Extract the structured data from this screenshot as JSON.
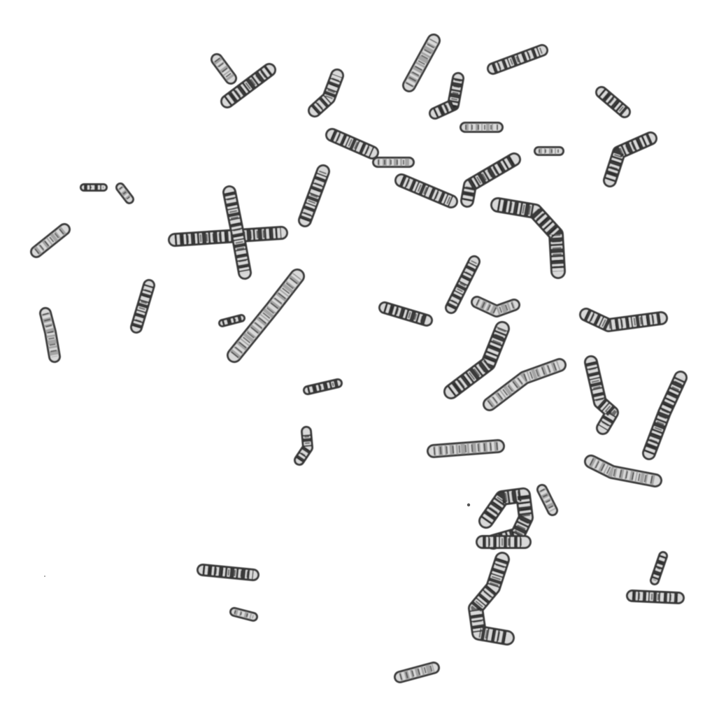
{
  "image": {
    "subject": "chromosome-spread",
    "background_color": "#ffffff",
    "chromosome_fill": "#d9d9d9",
    "chromosome_outline": "#3a3a3a",
    "band_dark_color": "#1f1f1f",
    "band_light_color": "#9a9a9a"
  }
}
